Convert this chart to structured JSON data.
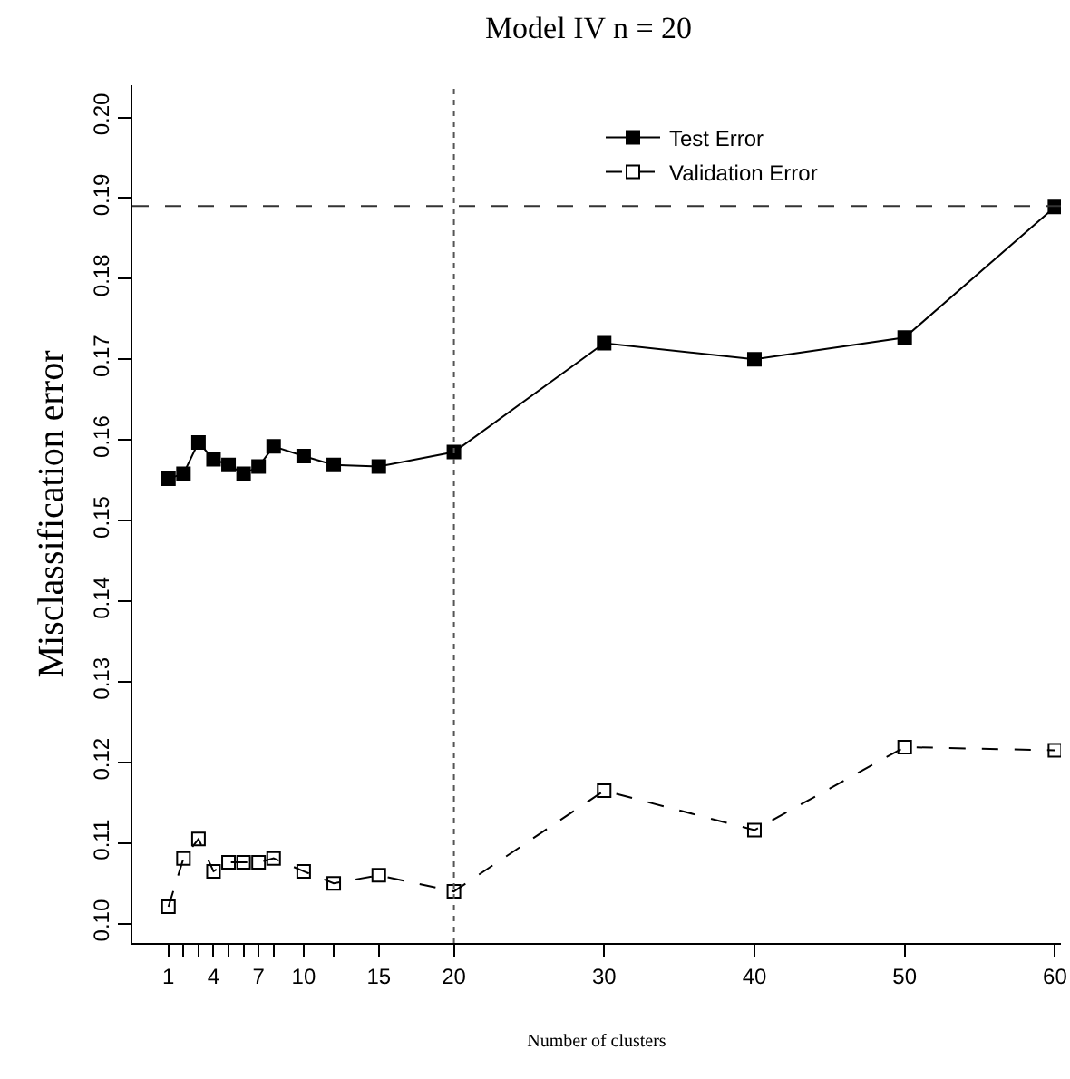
{
  "chart_data": {
    "type": "line",
    "title": "Model IV n = 20",
    "xlabel": "Number of clusters",
    "ylabel": "Misclassification error",
    "x": [
      1,
      2,
      3,
      4,
      5,
      6,
      7,
      8,
      10,
      12,
      15,
      20,
      30,
      40,
      50,
      60
    ],
    "series": [
      {
        "name": "Test Error",
        "color": "#000000",
        "line_style": "solid",
        "values": [
          0.1552,
          0.1558,
          0.1597,
          0.1576,
          0.1569,
          0.1558,
          0.1567,
          0.1592,
          0.158,
          0.1569,
          0.1567,
          0.1585,
          0.172,
          0.17,
          0.1727,
          0.1889
        ]
      },
      {
        "name": "Validation Error",
        "color": "#000000",
        "line_style": "dashed",
        "values": [
          0.1021,
          0.1081,
          0.1105,
          0.1065,
          0.1076,
          0.1076,
          0.1076,
          0.1081,
          0.1065,
          0.105,
          0.106,
          0.104,
          0.1165,
          0.1116,
          0.1219,
          0.1215
        ]
      }
    ],
    "xlim": [
      -1.4,
      60.4
    ],
    "ylim": [
      0.0976,
      0.204
    ],
    "xticks": [
      1,
      {
        "value": 2,
        "label": null
      },
      {
        "value": 3,
        "label": null
      },
      4,
      {
        "value": 5,
        "label": null
      },
      {
        "value": 6,
        "label": null
      },
      7,
      {
        "value": 8,
        "label": null
      },
      10,
      {
        "value": 12,
        "label": null
      },
      15,
      20,
      30,
      40,
      50,
      60
    ],
    "yticks": [
      {
        "value": 0.1,
        "label": "0.10"
      },
      0.11,
      0.12,
      0.13,
      0.14,
      0.15,
      0.16,
      0.17,
      0.18,
      0.19,
      {
        "value": 0.2,
        "label": "0.20"
      }
    ],
    "ref_lines": [
      {
        "axis": "x",
        "value": 20,
        "line_style": "dotted",
        "color": "#555555"
      },
      {
        "axis": "y",
        "value": 0.189,
        "line_style": "dashed",
        "color": "#333333"
      }
    ],
    "grid": false,
    "legend": "top right",
    "marker": "square"
  }
}
